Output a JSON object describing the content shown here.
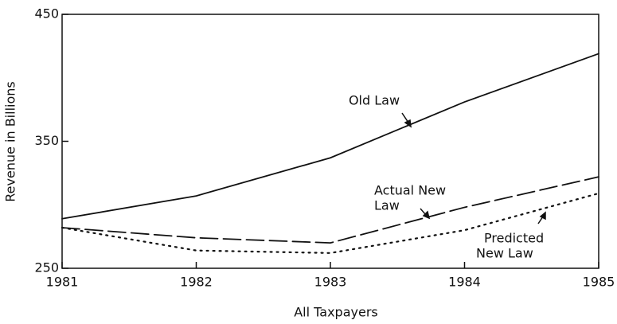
{
  "chart_data": {
    "type": "line",
    "xlabel": "All Taxpayers",
    "ylabel": "Revenue in Billions",
    "x": [
      1981,
      1982,
      1983,
      1984,
      1985
    ],
    "xlim": [
      1981,
      1985
    ],
    "xticks": [
      1981,
      1982,
      1983,
      1984,
      1985
    ],
    "ylim": [
      250,
      450
    ],
    "yticks": [
      250,
      350,
      450
    ],
    "series": [
      {
        "name": "Old Law",
        "color": "#111111",
        "linestyle": "solid",
        "values": [
          289,
          307,
          337,
          381,
          419
        ]
      },
      {
        "name": "Actual New Law",
        "color": "#111111",
        "linestyle": "dashed",
        "values": [
          282,
          274,
          270,
          298,
          322
        ]
      },
      {
        "name": "Predicted New Law",
        "color": "#111111",
        "linestyle": "dotted",
        "values": [
          282,
          264,
          262,
          280,
          309
        ]
      }
    ],
    "annotations": [
      {
        "lines": [
          "Old Law"
        ]
      },
      {
        "lines": [
          "Actual New",
          "Law"
        ]
      },
      {
        "lines": [
          "Predicted",
          "New Law"
        ]
      }
    ]
  }
}
